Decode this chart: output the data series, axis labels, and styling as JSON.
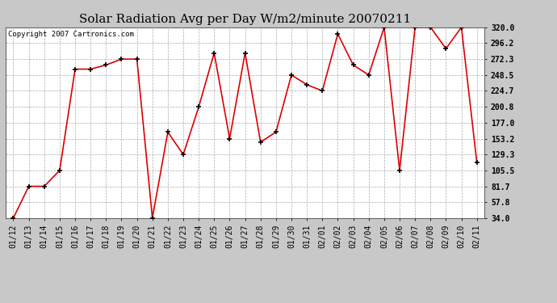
{
  "title": "Solar Radiation Avg per Day W/m2/minute 20070211",
  "copyright": "Copyright 2007 Cartronics.com",
  "labels": [
    "01/12",
    "01/13",
    "01/14",
    "01/15",
    "01/16",
    "01/17",
    "01/18",
    "01/19",
    "01/20",
    "01/21",
    "01/22",
    "01/23",
    "01/24",
    "01/25",
    "01/26",
    "01/27",
    "01/28",
    "01/29",
    "01/30",
    "01/31",
    "02/01",
    "02/02",
    "02/03",
    "02/04",
    "02/05",
    "02/06",
    "02/07",
    "02/08",
    "02/09",
    "02/10",
    "02/11"
  ],
  "values": [
    34.0,
    81.7,
    81.7,
    105.5,
    257.3,
    257.3,
    263.5,
    272.3,
    272.3,
    34.0,
    163.0,
    129.3,
    200.8,
    281.5,
    153.2,
    281.5,
    148.0,
    163.0,
    248.5,
    234.0,
    224.7,
    310.0,
    263.5,
    248.5,
    320.0,
    105.5,
    320.0,
    320.0,
    288.0,
    320.0,
    117.0
  ],
  "y_ticks": [
    34.0,
    57.8,
    81.7,
    105.5,
    129.3,
    153.2,
    177.0,
    200.8,
    224.7,
    248.5,
    272.3,
    296.2,
    320.0
  ],
  "ylim": [
    34.0,
    320.0
  ],
  "line_color": "#dd0000",
  "marker": "+",
  "marker_color": "#000000",
  "marker_size": 5,
  "marker_edge_width": 1.2,
  "line_width": 1.2,
  "bg_color": "#c8c8c8",
  "plot_bg_color": "#ffffff",
  "grid_color": "#aaaaaa",
  "title_fontsize": 11,
  "tick_fontsize": 7,
  "copyright_fontsize": 6.5,
  "figsize": [
    6.9,
    3.75
  ],
  "dpi": 100
}
